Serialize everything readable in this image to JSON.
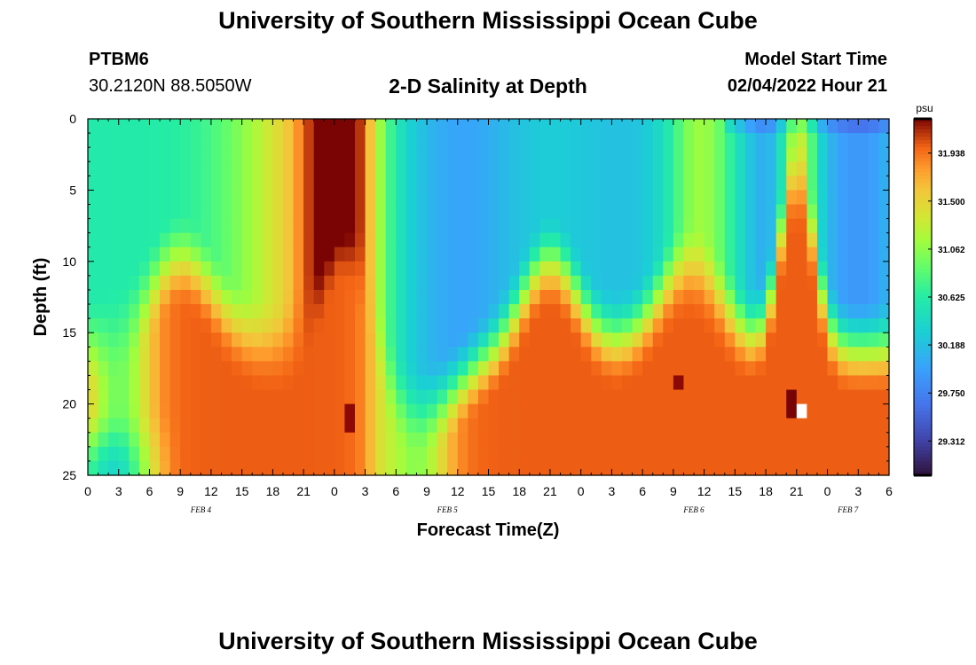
{
  "header": {
    "title": "University of Southern Mississippi Ocean Cube",
    "station": "PTBM6",
    "coords": "30.2120N  88.5050W",
    "subtitle": "2-D Salinity at Depth",
    "model_start_label": "Model Start Time",
    "model_start_value": "02/04/2022 Hour 21"
  },
  "footer": {
    "title": "University of Southern Mississippi Ocean Cube"
  },
  "chart_data": {
    "type": "heatmap",
    "title": "2-D Salinity at Depth",
    "xlabel": "Forecast Time(Z)",
    "ylabel": "Depth (ft)",
    "xlim": [
      0,
      78
    ],
    "ylim": [
      0,
      25
    ],
    "x_ticks": [
      0,
      3,
      6,
      9,
      12,
      15,
      18,
      21,
      24,
      27,
      30,
      33,
      36,
      39,
      42,
      45,
      48,
      51,
      54,
      57,
      60,
      63,
      66,
      69,
      72,
      75,
      78
    ],
    "x_tick_labels": [
      "0",
      "3",
      "6",
      "9",
      "12",
      "15",
      "18",
      "21",
      "0",
      "3",
      "6",
      "9",
      "12",
      "15",
      "18",
      "21",
      "0",
      "3",
      "6",
      "9",
      "12",
      "15",
      "18",
      "21",
      "0",
      "3",
      "6"
    ],
    "y_ticks": [
      0,
      5,
      10,
      15,
      20,
      25
    ],
    "y_tick_labels": [
      "0",
      "5",
      "10",
      "15",
      "20",
      "25"
    ],
    "date_labels": [
      {
        "text": "FEB 4",
        "x": 11
      },
      {
        "text": "FEB 5",
        "x": 35
      },
      {
        "text": "FEB 6",
        "x": 59
      },
      {
        "text": "FEB 7",
        "x": 74
      }
    ],
    "colorbar": {
      "unit": "psu",
      "range": [
        29.0,
        32.25
      ],
      "tick_labels": [
        "31.938",
        "31.500",
        "31.062",
        "30.625",
        "30.188",
        "29.750",
        "29.312"
      ],
      "tick_values": [
        31.938,
        31.5,
        31.062,
        30.625,
        30.188,
        29.75,
        29.312
      ]
    },
    "grid": false,
    "shape": {
      "nx": 78,
      "ny": 25,
      "description": "salinity field sampled hourly (x) and per foot of depth (y)"
    }
  }
}
